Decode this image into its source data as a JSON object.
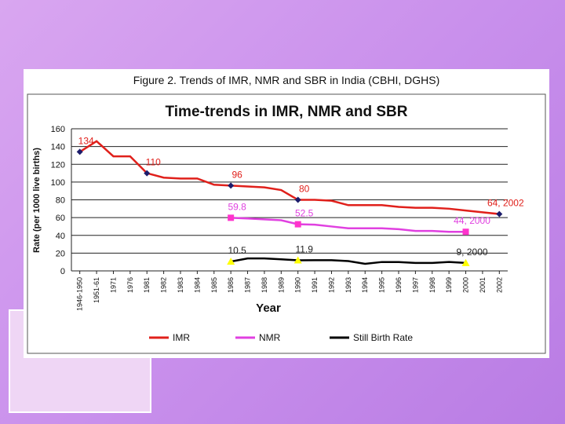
{
  "figure_title": "Figure 2. Trends of IMR, NMR and SBR in India (CBHI, DGHS)",
  "chart_data": {
    "type": "line",
    "title": "Time-trends in IMR, NMR and SBR",
    "x_label": "Year",
    "y_label": "Rate (per 1000 live births)",
    "categories": [
      "1946-1950",
      "1951-61",
      "1971",
      "1976",
      "1981",
      "1982",
      "1983",
      "1984",
      "1985",
      "1986",
      "1987",
      "1988",
      "1989",
      "1990",
      "1991",
      "1992",
      "1993",
      "1994",
      "1995",
      "1996",
      "1997",
      "1998",
      "1999",
      "2000",
      "2001",
      "2002"
    ],
    "ylim": [
      0,
      160
    ],
    "yticks": [
      0,
      20,
      40,
      60,
      80,
      100,
      120,
      140,
      160
    ],
    "grid": true,
    "legend": "bottom",
    "series": [
      {
        "name": "IMR",
        "color": "#e0201b",
        "marker": "diamond",
        "marker_color": "#1c1c6b",
        "values": [
          134,
          146,
          129,
          129,
          110,
          105,
          104,
          104,
          97,
          96,
          95,
          94,
          91,
          80,
          80,
          79,
          74,
          74,
          74,
          72,
          71,
          71,
          70,
          68,
          66,
          64
        ],
        "value_labels": [
          "134",
          null,
          null,
          null,
          "110",
          null,
          null,
          null,
          null,
          "96",
          null,
          null,
          null,
          "80",
          null,
          null,
          null,
          null,
          null,
          null,
          null,
          null,
          null,
          null,
          null,
          "64, 2002"
        ]
      },
      {
        "name": "NMR",
        "color": "#e040e0",
        "marker": "square",
        "marker_color": "#ff33cc",
        "values": [
          null,
          null,
          null,
          null,
          null,
          null,
          null,
          null,
          null,
          59.8,
          59,
          58,
          57,
          52.5,
          52,
          50,
          48,
          48,
          48,
          47,
          45,
          45,
          44,
          44,
          null,
          null
        ],
        "value_labels": [
          null,
          null,
          null,
          null,
          null,
          null,
          null,
          null,
          null,
          "59.8",
          null,
          null,
          null,
          "52.5",
          null,
          null,
          null,
          null,
          null,
          null,
          null,
          null,
          null,
          "44, 2000",
          null,
          null
        ]
      },
      {
        "name": "Still Birth Rate",
        "color": "#000000",
        "marker": "triangle",
        "marker_color": "#ffff00",
        "values": [
          null,
          null,
          null,
          null,
          null,
          null,
          null,
          null,
          null,
          10.5,
          14,
          14,
          13,
          11.9,
          12,
          12,
          11,
          8,
          10,
          10,
          9,
          9,
          10,
          9,
          null,
          null
        ],
        "value_labels": [
          null,
          null,
          null,
          null,
          null,
          null,
          null,
          null,
          null,
          "10.5",
          null,
          null,
          null,
          "11.9",
          null,
          null,
          null,
          null,
          null,
          null,
          null,
          null,
          null,
          "9, 2000",
          null,
          null
        ]
      }
    ]
  }
}
